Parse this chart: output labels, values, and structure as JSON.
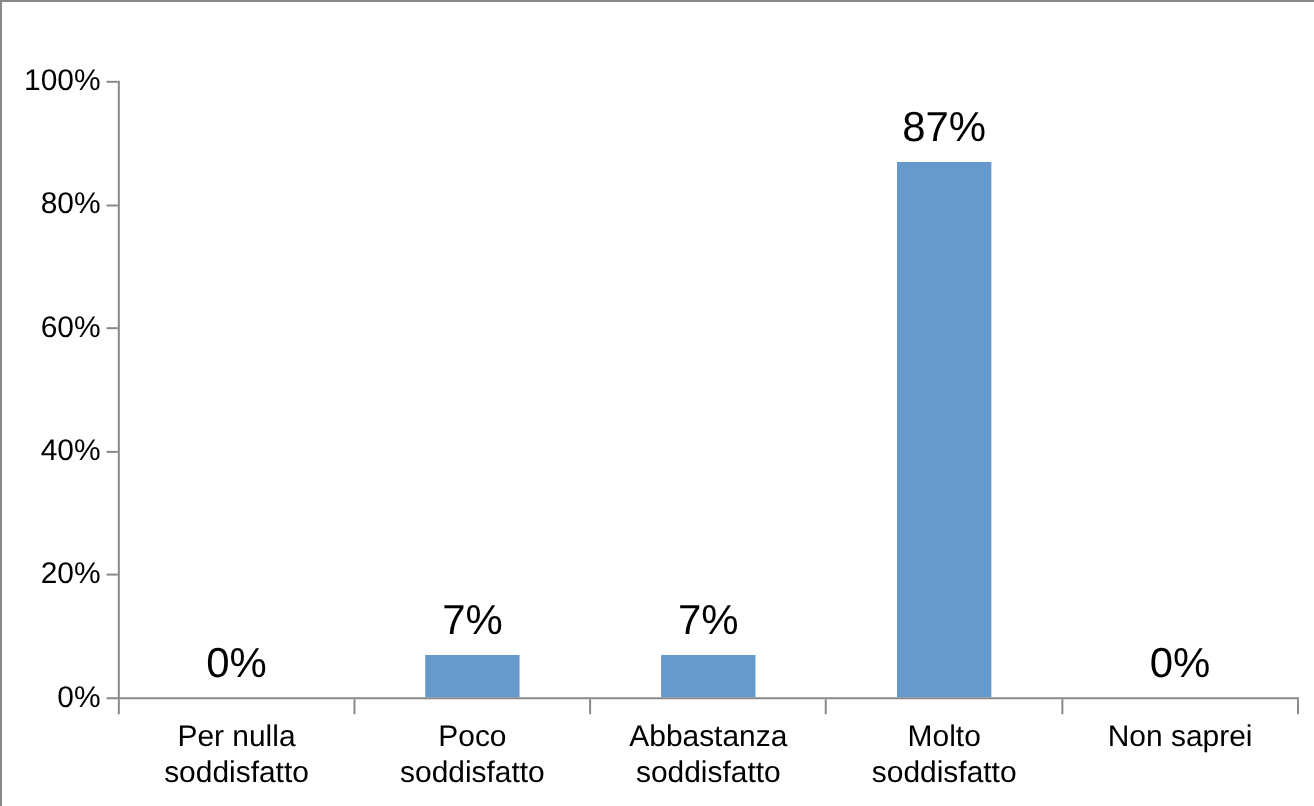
{
  "chart_data": {
    "type": "bar",
    "categories": [
      "Per nulla soddisfatto",
      "Poco soddisfatto",
      "Abbastanza soddisfatto",
      "Molto soddisfatto",
      "Non saprei"
    ],
    "values": [
      0,
      7,
      7,
      87,
      0
    ],
    "color": "#6699cc",
    "value_labels": [
      "0%",
      "7%",
      "7%",
      "87%",
      "0%"
    ],
    "ylim": [
      0,
      100
    ],
    "yticks": [
      {
        "value": 0,
        "label": "0%"
      },
      {
        "value": 20,
        "label": "20%"
      },
      {
        "value": 40,
        "label": "40%"
      },
      {
        "value": 60,
        "label": "60%"
      },
      {
        "value": 80,
        "label": "80%"
      },
      {
        "value": 100,
        "label": "100%"
      }
    ],
    "grid": false,
    "legend": false
  }
}
